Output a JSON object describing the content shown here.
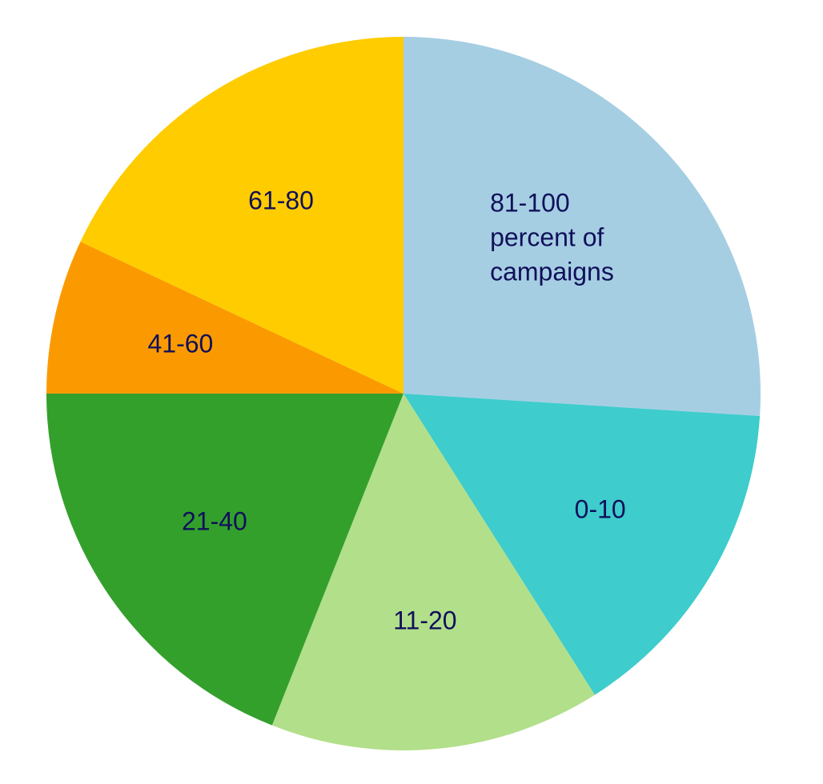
{
  "chart_data": {
    "type": "pie",
    "categories": [
      "81-100 percent of campaigns",
      "0-10",
      "11-20",
      "21-40",
      "41-60",
      "61-80"
    ],
    "values": [
      26,
      15,
      15,
      19,
      7,
      18
    ],
    "colors": [
      "#a6cee3",
      "#3ecccc",
      "#b2df8a",
      "#33a02c",
      "#fb9a00",
      "#ffcc00"
    ]
  }
}
